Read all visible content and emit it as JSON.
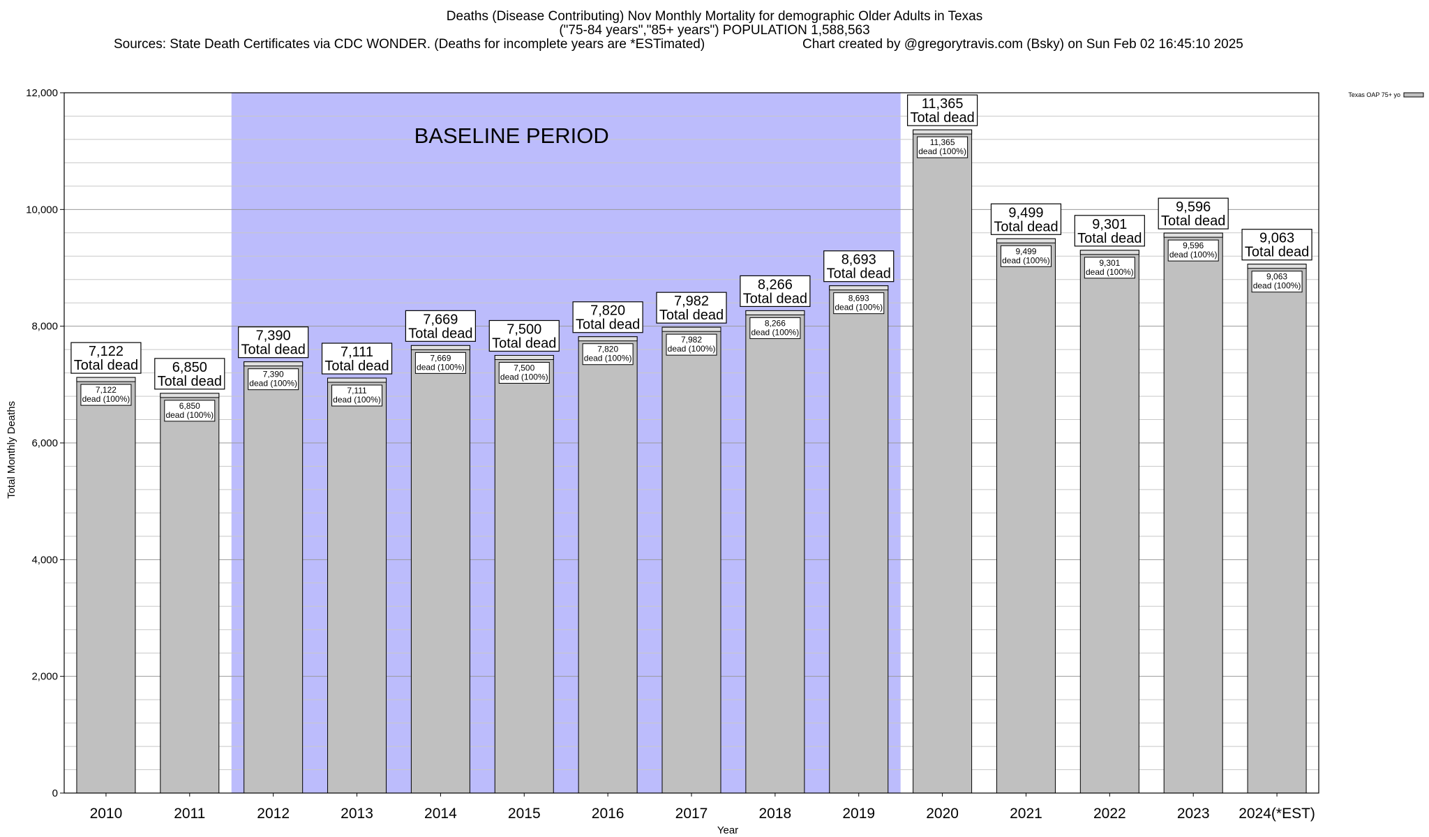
{
  "chart_data": {
    "type": "bar",
    "title": "Deaths (Disease Contributing) Nov Monthly Mortality for demographic Older Adults in Texas",
    "subtitle": "(\"75-84 years\",\"85+ years\") POPULATION 1,588,563",
    "sources": "Sources: State Death Certificates via CDC WONDER. (Deaths for incomplete years are *ESTimated)",
    "credit": "Chart created by @gregorytravis.com (Bsky) on Sun Feb 02 16:45:10 2025",
    "xlabel": "Year",
    "ylabel": "Total Monthly Deaths",
    "ylim": [
      0,
      12000
    ],
    "yticks": [
      0,
      2000,
      4000,
      6000,
      8000,
      10000,
      12000
    ],
    "ytick_labels": [
      "0",
      "2,000",
      "4,000",
      "6,000",
      "8,000",
      "10,000",
      "12,000"
    ],
    "grid": true,
    "categories": [
      "2010",
      "2011",
      "2012",
      "2013",
      "2014",
      "2015",
      "2016",
      "2017",
      "2018",
      "2019",
      "2020",
      "2021",
      "2022",
      "2023",
      "2024(*EST)"
    ],
    "series": [
      {
        "name": "Texas OAP 75+ yo",
        "values": [
          7122,
          6850,
          7390,
          7111,
          7669,
          7500,
          7820,
          7982,
          8266,
          8693,
          11365,
          9499,
          9301,
          9596,
          9063
        ],
        "color": "#c0c0c0"
      }
    ],
    "value_labels": [
      "7,122",
      "6,850",
      "7,390",
      "7,111",
      "7,669",
      "7,500",
      "7,820",
      "7,982",
      "8,266",
      "8,693",
      "11,365",
      "9,499",
      "9,301",
      "9,596",
      "9,063"
    ],
    "total_suffix": "Total dead",
    "inner_suffix": "dead (100%)",
    "baseline": {
      "label": "BASELINE PERIOD",
      "start_index": 2,
      "end_index": 9,
      "color": "#bcbcfc"
    },
    "legend": {
      "label": "Texas OAP 75+ yo",
      "position": "top-right"
    }
  }
}
